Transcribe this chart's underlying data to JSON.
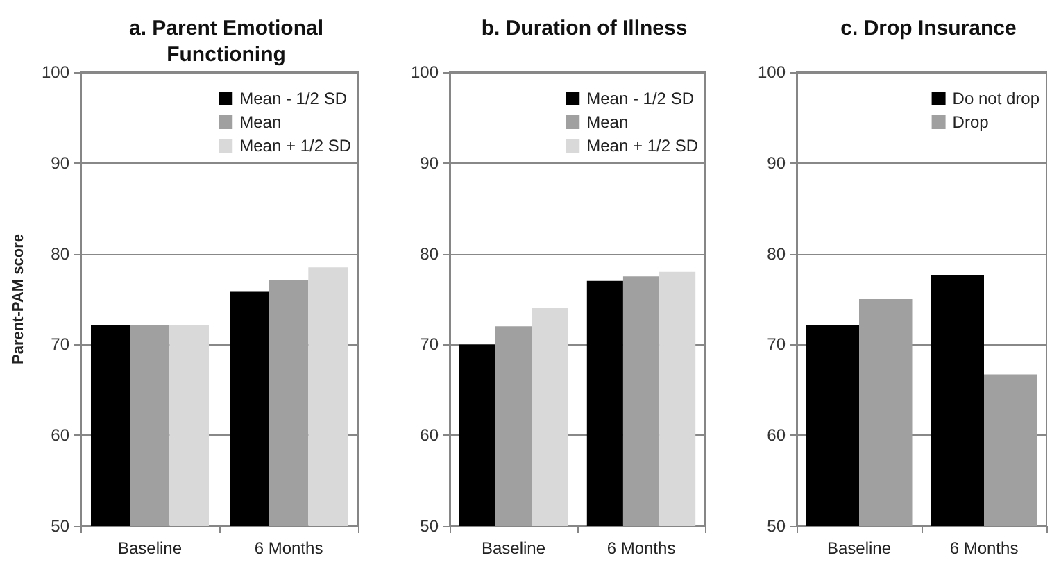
{
  "chart_data": [
    {
      "type": "bar",
      "title": "a. Parent Emotional\nFunctioning",
      "ylabel": "Parent-PAM score",
      "categories": [
        "Baseline",
        "6 Months"
      ],
      "series": [
        {
          "name": "Mean - 1/2 SD",
          "color": "#000000",
          "values": [
            72.1,
            75.8
          ]
        },
        {
          "name": "Mean",
          "color": "#a0a0a0",
          "values": [
            72.1,
            77.1
          ]
        },
        {
          "name": "Mean + 1/2 SD",
          "color": "#d9d9d9",
          "values": [
            72.1,
            78.5
          ]
        }
      ],
      "ylim": [
        50,
        100
      ],
      "yticks": [
        50,
        60,
        70,
        80,
        90,
        100
      ],
      "grid": "y",
      "legend": "top right"
    },
    {
      "type": "bar",
      "title": "b. Duration of Illness",
      "categories": [
        "Baseline",
        "6 Months"
      ],
      "series": [
        {
          "name": "Mean - 1/2 SD",
          "color": "#000000",
          "values": [
            70.0,
            77.0
          ]
        },
        {
          "name": "Mean",
          "color": "#a0a0a0",
          "values": [
            72.0,
            77.5
          ]
        },
        {
          "name": "Mean + 1/2 SD",
          "color": "#d9d9d9",
          "values": [
            74.0,
            78.0
          ]
        }
      ],
      "ylim": [
        50,
        100
      ],
      "yticks": [
        50,
        60,
        70,
        80,
        90,
        100
      ],
      "grid": "y",
      "legend": "top right"
    },
    {
      "type": "bar",
      "title": "c. Drop Insurance",
      "categories": [
        "Baseline",
        "6 Months"
      ],
      "series": [
        {
          "name": "Do not drop",
          "color": "#000000",
          "values": [
            72.1,
            77.6
          ]
        },
        {
          "name": "Drop",
          "color": "#a0a0a0",
          "values": [
            75.0,
            66.7
          ]
        }
      ],
      "ylim": [
        50,
        100
      ],
      "yticks": [
        50,
        60,
        70,
        80,
        90,
        100
      ],
      "grid": "y",
      "legend": "top right"
    }
  ]
}
